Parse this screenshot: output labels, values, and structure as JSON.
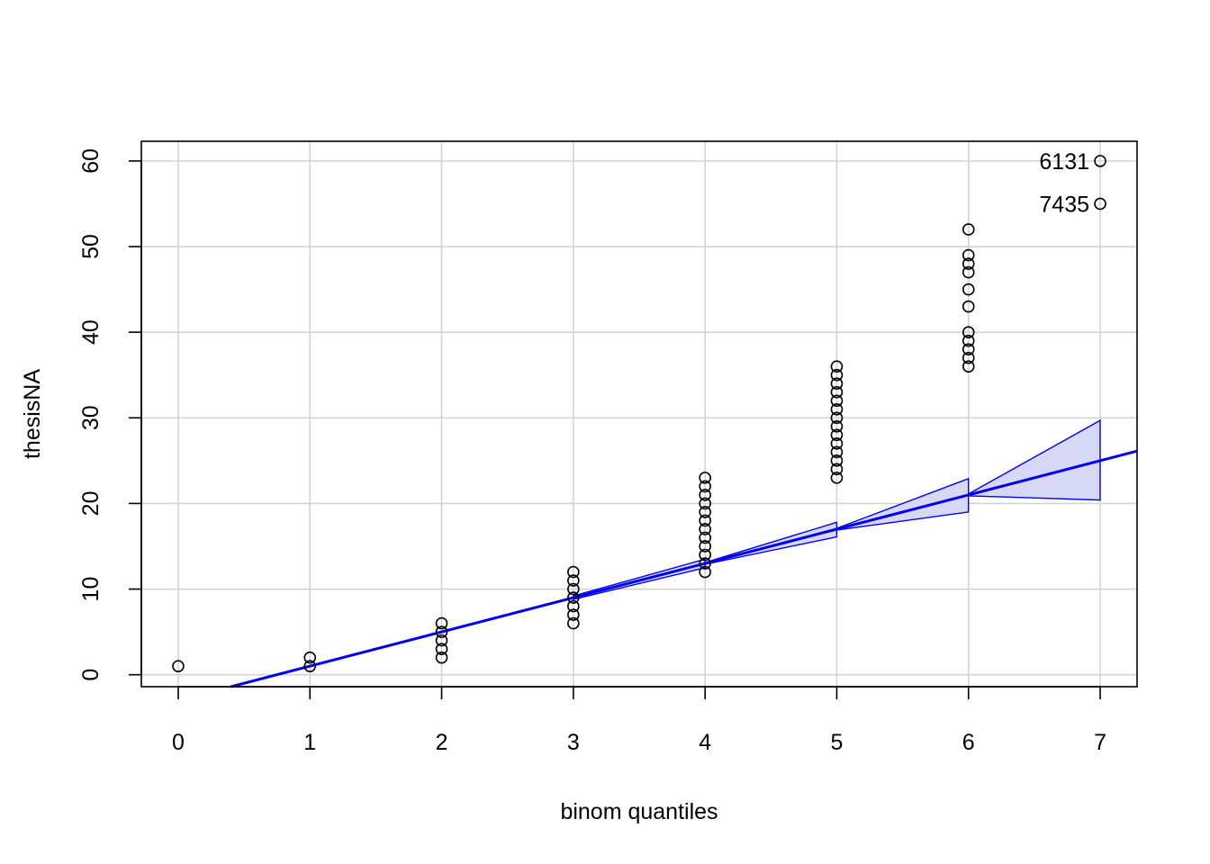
{
  "chart_data": {
    "type": "scatter",
    "title": "",
    "xlabel": "binom quantiles",
    "ylabel": "thesisNA",
    "xlim": [
      -0.28,
      7.28
    ],
    "ylim": [
      -1.4,
      62.3
    ],
    "x_ticks": [
      0,
      1,
      2,
      3,
      4,
      5,
      6,
      7
    ],
    "x_tick_labels": [
      "0",
      "1",
      "2",
      "3",
      "4",
      "5",
      "6",
      "7"
    ],
    "y_ticks": [
      0,
      10,
      20,
      30,
      40,
      50,
      60
    ],
    "y_tick_labels": [
      "0",
      "10",
      "20",
      "30",
      "40",
      "50",
      "60"
    ],
    "grid": true,
    "points": [
      {
        "x": 0,
        "y": 1
      },
      {
        "x": 1,
        "y": 1
      },
      {
        "x": 1,
        "y": 2
      },
      {
        "x": 2,
        "y": 2
      },
      {
        "x": 2,
        "y": 3
      },
      {
        "x": 2,
        "y": 4
      },
      {
        "x": 2,
        "y": 5
      },
      {
        "x": 2,
        "y": 6
      },
      {
        "x": 3,
        "y": 6
      },
      {
        "x": 3,
        "y": 7
      },
      {
        "x": 3,
        "y": 8
      },
      {
        "x": 3,
        "y": 9
      },
      {
        "x": 3,
        "y": 10
      },
      {
        "x": 3,
        "y": 11
      },
      {
        "x": 3,
        "y": 12
      },
      {
        "x": 4,
        "y": 12
      },
      {
        "x": 4,
        "y": 13
      },
      {
        "x": 4,
        "y": 14
      },
      {
        "x": 4,
        "y": 15
      },
      {
        "x": 4,
        "y": 16
      },
      {
        "x": 4,
        "y": 17
      },
      {
        "x": 4,
        "y": 18
      },
      {
        "x": 4,
        "y": 19
      },
      {
        "x": 4,
        "y": 20
      },
      {
        "x": 4,
        "y": 21
      },
      {
        "x": 4,
        "y": 22
      },
      {
        "x": 4,
        "y": 23
      },
      {
        "x": 5,
        "y": 23
      },
      {
        "x": 5,
        "y": 24
      },
      {
        "x": 5,
        "y": 25
      },
      {
        "x": 5,
        "y": 26
      },
      {
        "x": 5,
        "y": 27
      },
      {
        "x": 5,
        "y": 28
      },
      {
        "x": 5,
        "y": 29
      },
      {
        "x": 5,
        "y": 30
      },
      {
        "x": 5,
        "y": 31
      },
      {
        "x": 5,
        "y": 32
      },
      {
        "x": 5,
        "y": 33
      },
      {
        "x": 5,
        "y": 34
      },
      {
        "x": 5,
        "y": 35
      },
      {
        "x": 5,
        "y": 36
      },
      {
        "x": 6,
        "y": 36
      },
      {
        "x": 6,
        "y": 37
      },
      {
        "x": 6,
        "y": 38
      },
      {
        "x": 6,
        "y": 39
      },
      {
        "x": 6,
        "y": 40
      },
      {
        "x": 6,
        "y": 43
      },
      {
        "x": 6,
        "y": 45
      },
      {
        "x": 6,
        "y": 47
      },
      {
        "x": 6,
        "y": 48
      },
      {
        "x": 6,
        "y": 49
      },
      {
        "x": 6,
        "y": 52
      },
      {
        "x": 7,
        "y": 55
      },
      {
        "x": 7,
        "y": 60
      }
    ],
    "labeled_points": [
      {
        "x": 7,
        "y": 60,
        "label": "6131"
      },
      {
        "x": 7,
        "y": 55,
        "label": "7435"
      }
    ],
    "reference_line": {
      "intercept": -3,
      "slope": 4
    },
    "envelope": [
      {
        "x": 3,
        "lower": 8.8,
        "upper": 9.2
      },
      {
        "x": 4,
        "lower": 12.5,
        "upper": 13.5
      },
      {
        "x": 5,
        "lower": 16.1,
        "upper": 17.8
      },
      {
        "x": 6,
        "lower": 19.0,
        "upper": 22.9
      },
      {
        "x": 7,
        "lower": 20.4,
        "upper": 29.7
      }
    ],
    "colors": {
      "line": "#0000ee",
      "envelope_fill": "#d7d8f8",
      "grid": "#d3d3d3",
      "points": "#000000",
      "frame": "#000000"
    }
  }
}
